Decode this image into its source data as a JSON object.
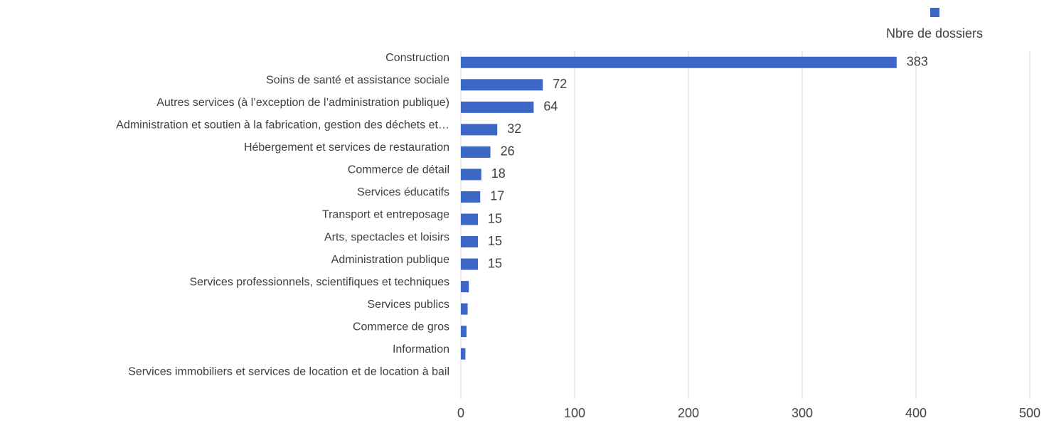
{
  "chart_data": {
    "type": "bar",
    "categories": [
      "Construction",
      "Soins de santé et assistance sociale",
      "Autres services (à l’exception de l’administration publique)",
      "Administration et soutien à la fabrication, gestion des déchets et…",
      "Hébergement et services de restauration",
      "Commerce de détail",
      "Services éducatifs",
      "Transport et entreposage",
      "Arts, spectacles et loisirs",
      "Administration publique",
      "Services professionnels, scientifiques et techniques",
      "Services publics",
      "Commerce de gros",
      "Information",
      "Services immobiliers et services de location et de location à bail"
    ],
    "series": [
      {
        "name": "Nbre de dossiers",
        "color": "#3d67c6",
        "values": [
          383,
          72,
          64,
          32,
          26,
          18,
          17,
          15,
          15,
          15,
          7,
          6,
          5,
          4,
          0
        ],
        "value_labels": [
          "383",
          "72",
          "64",
          "32",
          "26",
          "18",
          "17",
          "15",
          "15",
          "15",
          null,
          null,
          null,
          null,
          null
        ]
      }
    ],
    "xlim": [
      0,
      500
    ],
    "xticks": [
      0,
      100,
      200,
      300,
      400,
      500
    ],
    "grid": true,
    "legend": "top-right"
  }
}
